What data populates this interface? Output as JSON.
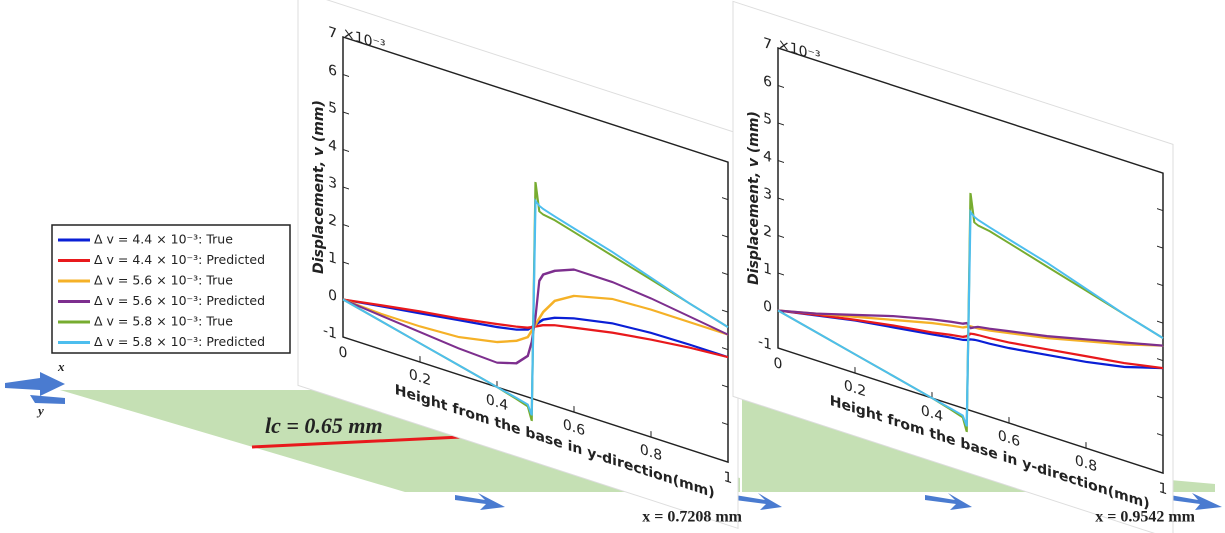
{
  "chart_data": [
    {
      "type": "line",
      "y_label": "Displacement, v (mm)",
      "x_label": "Height from the base in y-direction(mm)",
      "y_multiplier": "×10⁻³",
      "section_label": "x = 0.7208 mm",
      "x": [
        0,
        0.1,
        0.2,
        0.3,
        0.4,
        0.45,
        0.48,
        0.49,
        0.5,
        0.51,
        0.52,
        0.55,
        0.6,
        0.7,
        0.8,
        0.9,
        1
      ],
      "xlim": [
        0,
        1
      ],
      "xticks": [
        0,
        0.2,
        0.4,
        0.6,
        0.8,
        1
      ],
      "ylim": [
        -1,
        7
      ],
      "yticks": [
        -1,
        0,
        1,
        2,
        3,
        4,
        5,
        6,
        7
      ],
      "series": [
        {
          "name": "Δ v = 4.4 × 10⁻³: True",
          "color": "#0a1fd6",
          "values": [
            0,
            0.15,
            0.3,
            0.45,
            0.6,
            0.7,
            0.8,
            0.9,
            1.0,
            1.1,
            1.2,
            1.35,
            1.5,
            1.7,
            1.78,
            1.8,
            1.8
          ]
        },
        {
          "name": "Δ v = 4.4 × 10⁻³: Predicted",
          "color": "#e8191c",
          "values": [
            0,
            0.18,
            0.35,
            0.5,
            0.68,
            0.78,
            0.85,
            0.9,
            0.95,
            1.0,
            1.05,
            1.15,
            1.25,
            1.45,
            1.6,
            1.72,
            1.8
          ]
        },
        {
          "name": "Δ v = 5.6 × 10⁻³: True",
          "color": "#f5b127",
          "values": [
            0,
            -0.05,
            -0.05,
            0,
            0.2,
            0.4,
            0.6,
            0.8,
            1.0,
            1.2,
            1.4,
            1.8,
            2.1,
            2.35,
            2.4,
            2.4,
            2.4
          ]
        },
        {
          "name": "Δ v = 5.6 × 10⁻³: Predicted",
          "color": "#7d2f8e",
          "values": [
            0,
            -0.1,
            -0.2,
            -0.3,
            -0.35,
            -0.2,
            0.1,
            0.5,
            1.2,
            2.2,
            2.4,
            2.6,
            2.8,
            2.8,
            2.7,
            2.55,
            2.4
          ]
        },
        {
          "name": "Δ v = 5.8 × 10⁻³: True",
          "color": "#77ac30",
          "values": [
            0,
            -0.25,
            -0.5,
            -0.75,
            -1.0,
            -1.15,
            -1.25,
            -1.6,
            4.8,
            4.05,
            4.0,
            3.95,
            3.8,
            3.5,
            3.2,
            2.9,
            2.6
          ]
        },
        {
          "name": "Δ v = 5.8 × 10⁻³: Predicted",
          "color": "#4dbeee",
          "values": [
            0,
            -0.25,
            -0.5,
            -0.75,
            -1.0,
            -1.12,
            -1.2,
            -1.45,
            4.3,
            4.2,
            4.15,
            4.05,
            3.9,
            3.6,
            3.25,
            2.9,
            2.6
          ]
        }
      ]
    },
    {
      "type": "line",
      "y_label": "Displacement, v (mm)",
      "x_label": "Height from the base in y-direction(mm)",
      "y_multiplier": "×10⁻³",
      "section_label": "x = 0.9542 mm",
      "x": [
        0,
        0.1,
        0.2,
        0.3,
        0.4,
        0.45,
        0.48,
        0.49,
        0.5,
        0.51,
        0.52,
        0.55,
        0.6,
        0.7,
        0.8,
        0.9,
        1
      ],
      "xlim": [
        0,
        1
      ],
      "xticks": [
        0,
        0.2,
        0.4,
        0.6,
        0.8,
        1
      ],
      "ylim": [
        -1,
        7
      ],
      "yticks": [
        -1,
        0,
        1,
        2,
        3,
        4,
        5,
        6,
        7
      ],
      "series": [
        {
          "color": "#0a1fd6",
          "values": [
            0,
            0.2,
            0.4,
            0.55,
            0.7,
            0.78,
            0.82,
            0.85,
            0.9,
            0.92,
            0.93,
            0.95,
            1.0,
            1.15,
            1.3,
            1.5,
            1.8
          ]
        },
        {
          "color": "#e8191c",
          "values": [
            0,
            0.22,
            0.42,
            0.6,
            0.75,
            0.85,
            0.9,
            0.95,
            1.05,
            1.07,
            1.08,
            1.1,
            1.15,
            1.3,
            1.45,
            1.6,
            1.8
          ]
        },
        {
          "color": "#f5b127",
          "values": [
            0,
            0.25,
            0.5,
            0.75,
            1.0,
            1.1,
            1.15,
            1.2,
            1.25,
            1.25,
            1.25,
            1.3,
            1.4,
            1.6,
            1.85,
            2.1,
            2.4
          ]
        },
        {
          "color": "#7d2f8e",
          "values": [
            0,
            0.25,
            0.55,
            0.85,
            1.1,
            1.2,
            1.25,
            1.3,
            1.2,
            1.25,
            1.3,
            1.35,
            1.45,
            1.65,
            1.9,
            2.15,
            2.4
          ]
        },
        {
          "color": "#77ac30",
          "values": [
            0,
            -0.25,
            -0.5,
            -0.75,
            -1.0,
            -1.15,
            -1.25,
            -1.6,
            4.8,
            4.05,
            4.0,
            3.95,
            3.8,
            3.5,
            3.2,
            2.9,
            2.6
          ]
        },
        {
          "color": "#4dbeee",
          "values": [
            0,
            -0.25,
            -0.5,
            -0.75,
            -1.0,
            -1.12,
            -1.2,
            -1.45,
            4.3,
            4.2,
            4.15,
            4.05,
            3.9,
            3.6,
            3.25,
            2.9,
            2.6
          ]
        }
      ]
    }
  ],
  "figure": {
    "crack_label": "lc = 0.65 mm",
    "axes": [
      "x",
      "y"
    ]
  }
}
